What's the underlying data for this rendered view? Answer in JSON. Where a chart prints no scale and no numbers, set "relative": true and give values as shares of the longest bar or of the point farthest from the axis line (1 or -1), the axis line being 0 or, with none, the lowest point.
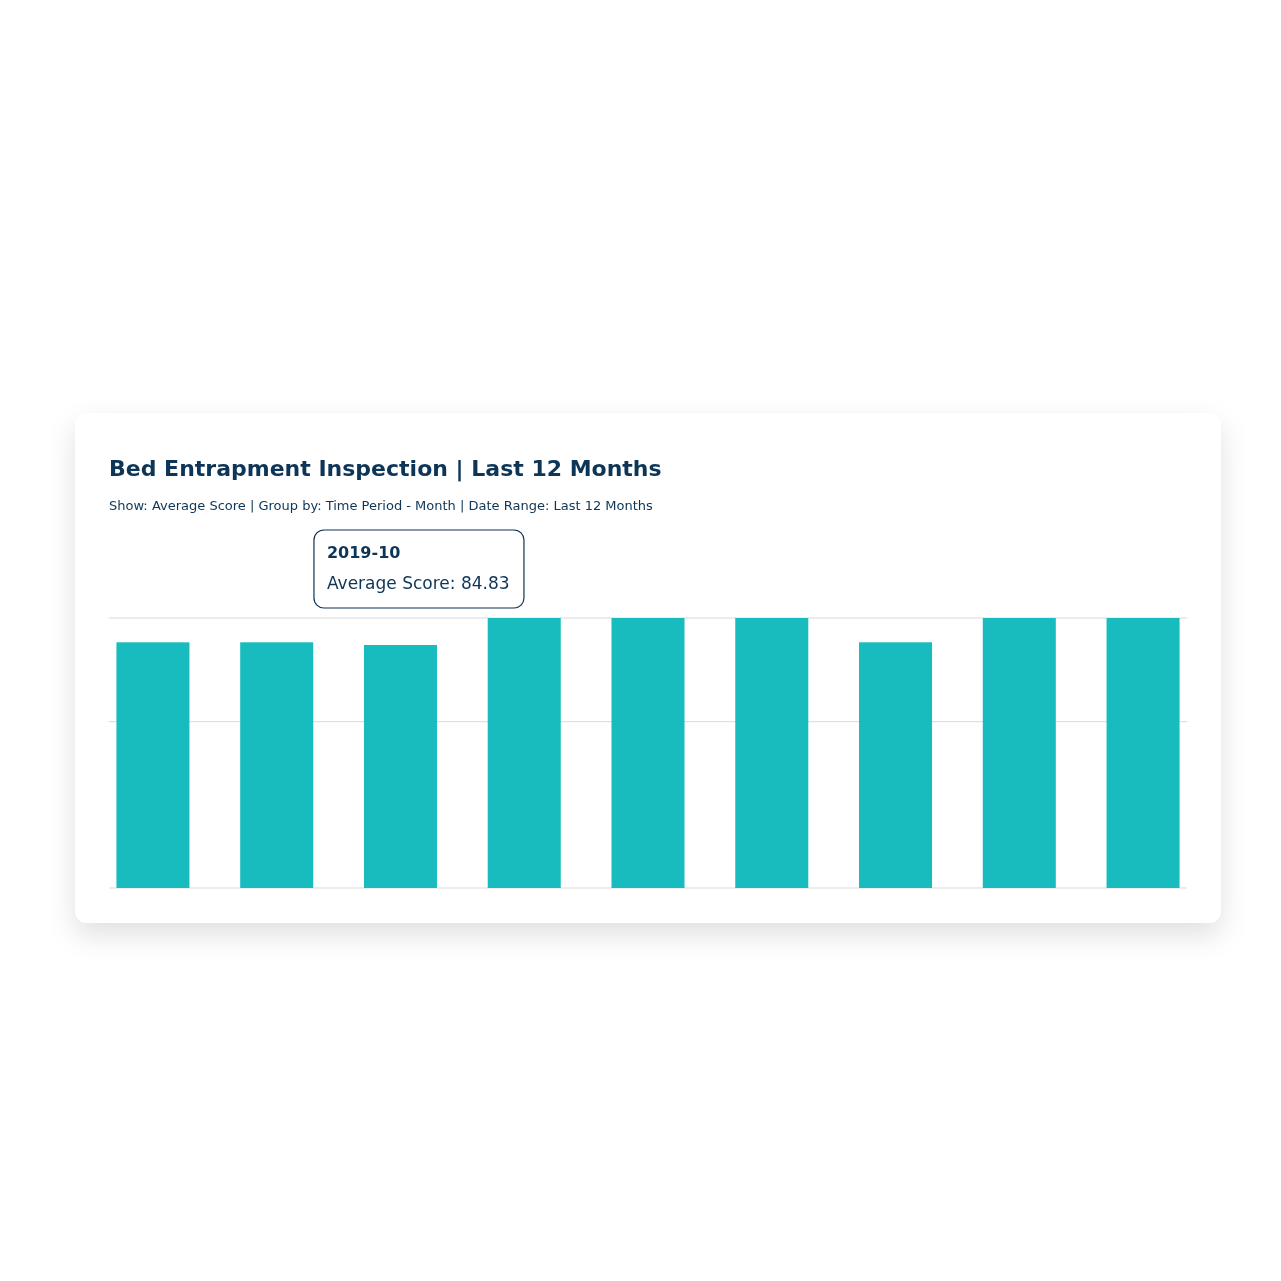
{
  "chart_data": {
    "type": "bar",
    "title": "Bed Entrapment Inspection | Last 12 Months",
    "subtitle": "Show: Average Score | Group by: Time Period - Month | Date Range: Last 12 Months",
    "categories": [
      null,
      null,
      null,
      null,
      null,
      null,
      null,
      null,
      null
    ],
    "values": [
      0.91,
      0.91,
      0.9,
      1,
      1,
      1,
      0.91,
      1,
      1
    ],
    "color": "#18bcbf",
    "relative": true,
    "ref_lines": [
      {
        "axis": "y",
        "value": 1,
        "color": "#d9d9d9"
      },
      {
        "axis": "y",
        "value": 0.616,
        "color": "#d9d9d9"
      }
    ],
    "annotations": [
      "2019-10",
      "Average Score: 84.83"
    ]
  }
}
